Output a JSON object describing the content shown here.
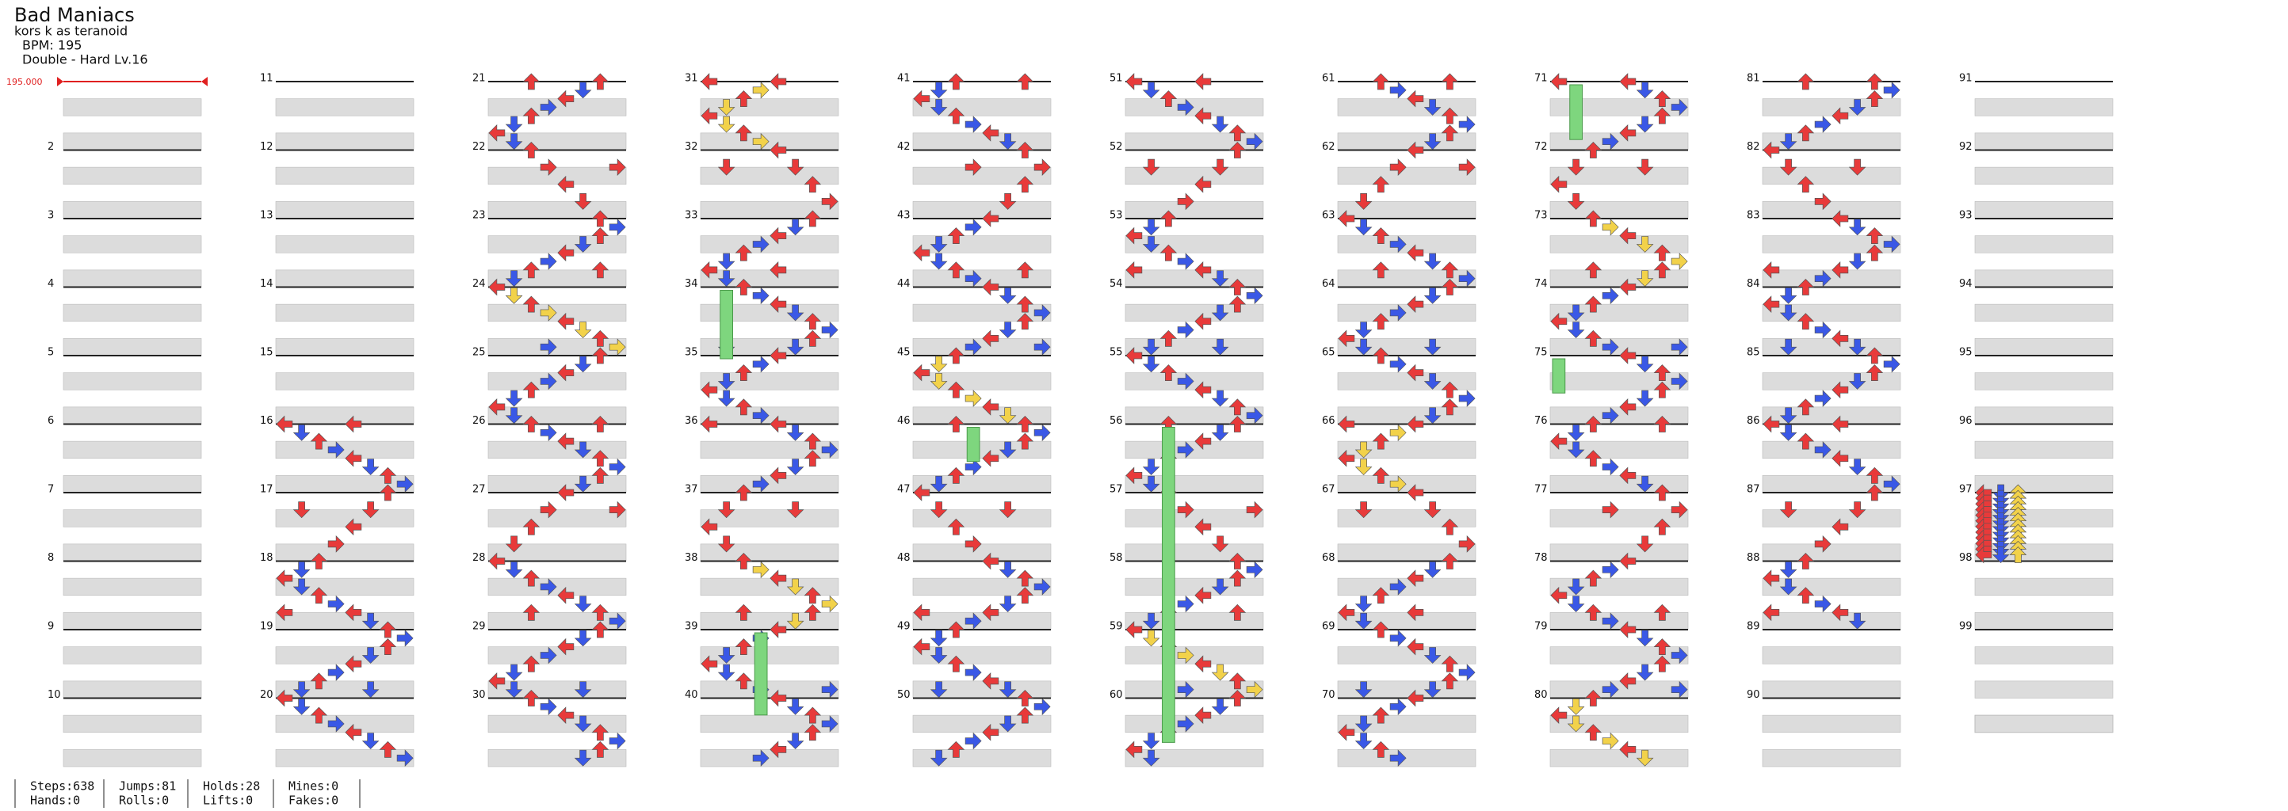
{
  "header": {
    "title": "Bad Maniacs",
    "artist": "kors k as teranoid",
    "bpm": "BPM: 195",
    "difficulty": "Double - Hard Lv.16"
  },
  "bpm_marker": "195.000",
  "measure_numbers": [
    2,
    3,
    4,
    5,
    6,
    7,
    8,
    9,
    10,
    11,
    12,
    13,
    14,
    15,
    16,
    17,
    18,
    19,
    20,
    21,
    22,
    23,
    24,
    25,
    26,
    27,
    28,
    29,
    30,
    31,
    32,
    33,
    34,
    35,
    36,
    37,
    38,
    39,
    40,
    41,
    42,
    43,
    44,
    45,
    46,
    47,
    48,
    49,
    50,
    51,
    52,
    53,
    54,
    55,
    56,
    57,
    58,
    59,
    60,
    61,
    62,
    63,
    64,
    65,
    66,
    67,
    68,
    69,
    70,
    71,
    72,
    73,
    74,
    75,
    76,
    77,
    78,
    79,
    80,
    81,
    82,
    83,
    84,
    85,
    86,
    87,
    88,
    89,
    90,
    91,
    92,
    93,
    94,
    95,
    96,
    97,
    98,
    99
  ],
  "stats": [
    [
      "Steps:638",
      "Hands:0"
    ],
    [
      "Jumps:81",
      "Rolls:0"
    ],
    [
      "Holds:28",
      "Lifts:0"
    ],
    [
      "Mines:0",
      "Fakes:0"
    ]
  ]
}
